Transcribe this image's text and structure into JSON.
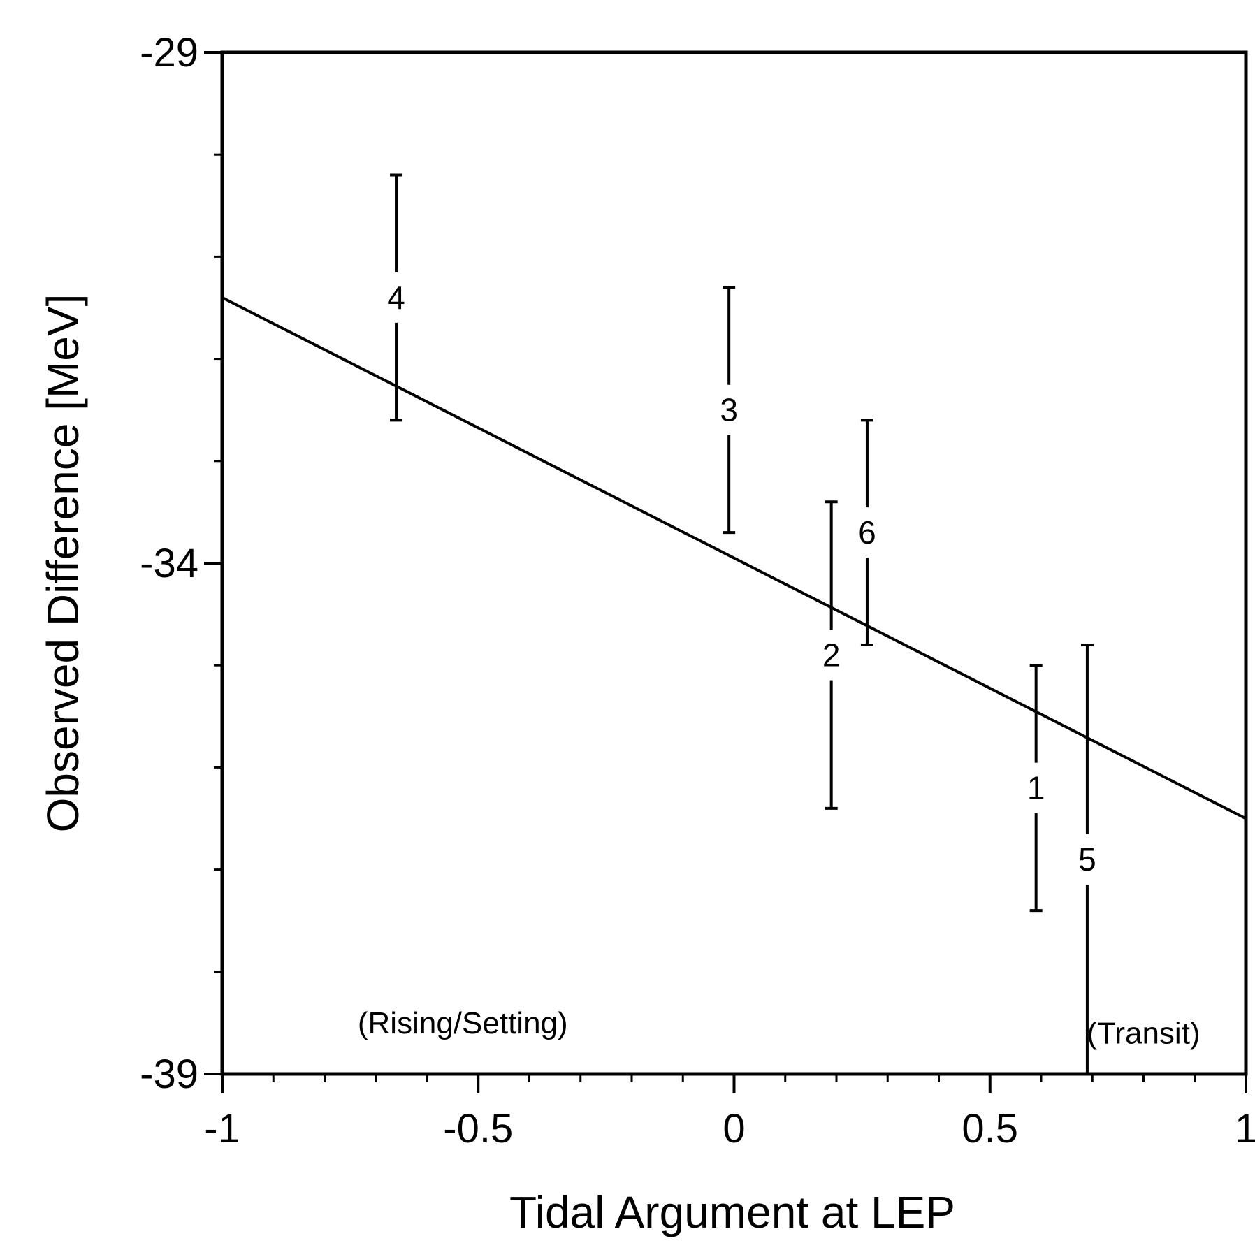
{
  "chart_data": {
    "type": "scatter",
    "title": "",
    "xlabel": "Tidal Argument at LEP",
    "ylabel": "Observed Difference [MeV]",
    "xlim": [
      -1,
      1
    ],
    "ylim": [
      -39,
      -29
    ],
    "x_ticks": [
      -1,
      -0.5,
      0,
      0.5,
      1
    ],
    "x_tick_labels": [
      "-1",
      "-0.5",
      "0",
      "0.5",
      "1"
    ],
    "y_ticks": [
      -29,
      -34,
      -39
    ],
    "y_tick_labels": [
      "-29",
      "-34",
      "-39"
    ],
    "y_minor_step": 1,
    "x_minor_step": 0.1,
    "grid": false,
    "series": [
      {
        "points": [
          {
            "label": "1",
            "x": 0.59,
            "y_low": -37.4,
            "y_high": -35.0
          },
          {
            "label": "2",
            "x": 0.19,
            "y_low": -36.4,
            "y_high": -33.4
          },
          {
            "label": "3",
            "x": -0.01,
            "y_low": -33.7,
            "y_high": -31.3
          },
          {
            "label": "4",
            "x": -0.66,
            "y_low": -32.6,
            "y_high": -30.2
          },
          {
            "label": "5",
            "x": 0.69,
            "y_low": -39.0,
            "y_high": -34.8
          },
          {
            "label": "6",
            "x": 0.26,
            "y_low": -34.8,
            "y_high": -32.6
          }
        ]
      }
    ],
    "fit_line": {
      "x": [
        -1,
        1
      ],
      "y": [
        -31.4,
        -36.5
      ]
    },
    "annotations": [
      {
        "text": "(Rising/Setting)",
        "x": -0.53,
        "y": -38.5
      },
      {
        "text": "(Transit)",
        "x": 0.8,
        "y": -38.6
      }
    ]
  }
}
